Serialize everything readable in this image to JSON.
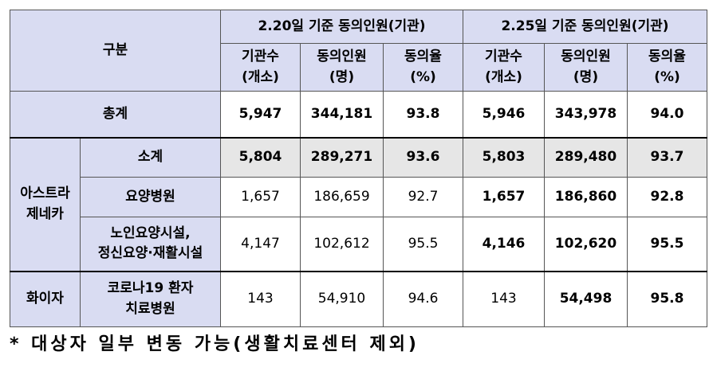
{
  "header": {
    "category": "구분",
    "group1": "2.20일 기준 동의인원(기관)",
    "group2": "2.25일 기준 동의인원(기관)",
    "cols": [
      {
        "l1": "기관수",
        "l2": "(개소)"
      },
      {
        "l1": "동의인원",
        "l2": "(명)"
      },
      {
        "l1": "동의율",
        "l2": "(%)"
      },
      {
        "l1": "기관수",
        "l2": "(개소)"
      },
      {
        "l1": "동의인원",
        "l2": "(명)"
      },
      {
        "l1": "동의율",
        "l2": "(%)"
      }
    ]
  },
  "total": {
    "label": "총계",
    "values": [
      "5,947",
      "344,181",
      "93.8",
      "5,946",
      "343,978",
      "94.0"
    ]
  },
  "astrazeneca": {
    "label_l1": "아스트라",
    "label_l2": "제네카",
    "subtotal": {
      "label": "소계",
      "values": [
        "5,804",
        "289,271",
        "93.6",
        "5,803",
        "289,480",
        "93.7"
      ]
    },
    "hospital": {
      "label": "요양병원",
      "values": [
        "1,657",
        "186,659",
        "92.7",
        "1,657",
        "186,860",
        "92.8"
      ]
    },
    "facility": {
      "label_l1": "노인요양시설,",
      "label_l2": "정신요양·재활시설",
      "values": [
        "4,147",
        "102,612",
        "95.5",
        "4,146",
        "102,620",
        "95.5"
      ]
    }
  },
  "pfizer": {
    "label": "화이자",
    "sub_l1": "코로나19 환자",
    "sub_l2": "치료병원",
    "values": [
      "143",
      "54,910",
      "94.6",
      "143",
      "54,498",
      "95.8"
    ]
  },
  "note": "* 대상자 일부 변동 가능(생활치료센터 제외)"
}
